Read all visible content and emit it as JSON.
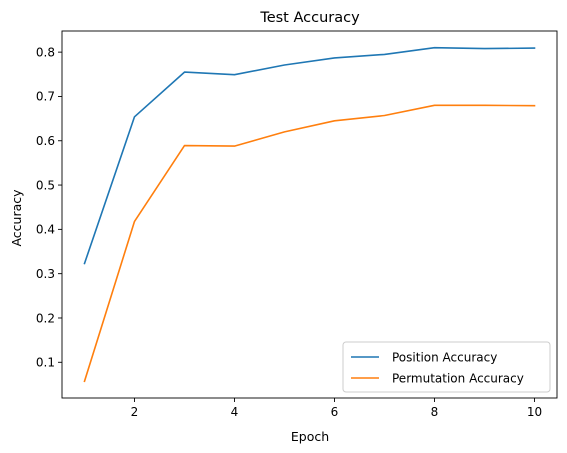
{
  "chart_data": {
    "type": "line",
    "title": "Test Accuracy",
    "xlabel": "Epoch",
    "ylabel": "Accuracy",
    "x": [
      1,
      2,
      3,
      4,
      5,
      6,
      7,
      8,
      9,
      10
    ],
    "series": [
      {
        "name": "Position Accuracy",
        "color": "#1f77b4",
        "values": [
          0.323,
          0.654,
          0.755,
          0.749,
          0.771,
          0.787,
          0.795,
          0.81,
          0.808,
          0.809
        ]
      },
      {
        "name": "Permutation Accuracy",
        "color": "#ff7f0e",
        "values": [
          0.057,
          0.418,
          0.589,
          0.588,
          0.62,
          0.645,
          0.657,
          0.68,
          0.68,
          0.679
        ]
      }
    ],
    "xlim": [
      0.55,
      10.45
    ],
    "ylim": [
      0.0194,
      0.8477
    ],
    "xticks": [
      2,
      4,
      6,
      8,
      10
    ],
    "yticks": [
      0.1,
      0.2,
      0.3,
      0.4,
      0.5,
      0.6,
      0.7,
      0.8
    ],
    "grid": false,
    "legend_position": "lower-right"
  }
}
